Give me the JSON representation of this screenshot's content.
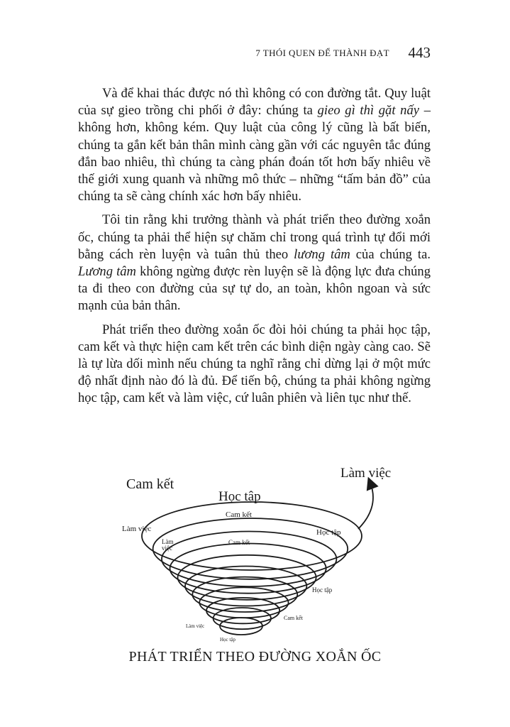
{
  "header": {
    "running_title": "7 THÓI QUEN ĐỂ THÀNH ĐẠT",
    "page_number": "443"
  },
  "paragraphs": [
    [
      {
        "text": "Và để khai thác được nó thì không có con đường tắt. Quy luật của sự gieo trồng chi phối ở đây: chúng ta ",
        "italic": false
      },
      {
        "text": "gieo gì thì gặt nấy",
        "italic": true
      },
      {
        "text": " – không hơn, không kém. Quy luật của công lý cũng là bất biến, chúng ta gắn kết bản thân mình càng gần với các nguyên tắc đúng đắn bao nhiêu, thì chúng ta càng phán đoán tốt hơn bấy nhiêu về thế giới xung quanh và những mô thức – những “tấm bản đồ” của chúng ta sẽ càng chính xác hơn bấy nhiêu.",
        "italic": false
      }
    ],
    [
      {
        "text": "Tôi tin rằng khi trưởng thành và phát triển theo đường xoắn ốc, chúng ta phải thể hiện sự chăm chỉ trong quá trình tự đổi mới bằng cách rèn luyện và tuân thủ theo ",
        "italic": false
      },
      {
        "text": "lương tâm",
        "italic": true
      },
      {
        "text": " của chúng ta. ",
        "italic": false
      },
      {
        "text": "Lương tâm",
        "italic": true
      },
      {
        "text": " không ngừng được rèn luyện sẽ là động lực đưa chúng ta đi theo con đường của sự tự do, an toàn, khôn ngoan và sức mạnh của bản thân.",
        "italic": false
      }
    ],
    [
      {
        "text": "Phát triển theo đường xoắn ốc đòi hỏi chúng ta phải học tập, cam kết và thực hiện cam kết trên các bình diện ngày càng cao. Sẽ là tự lừa dối mình nếu chúng ta nghĩ rằng chỉ dừng lại ở một mức độ nhất định nào đó là đủ. Để tiến bộ, chúng ta phải không ngừng học tập, cam kết và làm việc, cứ luân phiên và liên tục như  thế.",
        "italic": false
      }
    ]
  ],
  "figure": {
    "labels": {
      "cam_ket_large": "Cam kết",
      "hoc_tap_large": "Học tập",
      "lam_viec_large": "Làm việc",
      "cam_ket_1": "Cam kết",
      "lam_viec_1": "Làm việc",
      "hoc_tap_1": "Học tập",
      "lam_2": "Làm",
      "viec_2": "việc",
      "cam_ket_2": "Cam kết",
      "hoc_tap_2": "Học tập",
      "cam_ket_3": "Cam kết",
      "lam_viec_3": "Làm việc",
      "hoc_tap_3": "Học tập"
    },
    "caption": "PHÁT TRIỂN THEO ĐƯỜNG XOẮN ỐC"
  }
}
